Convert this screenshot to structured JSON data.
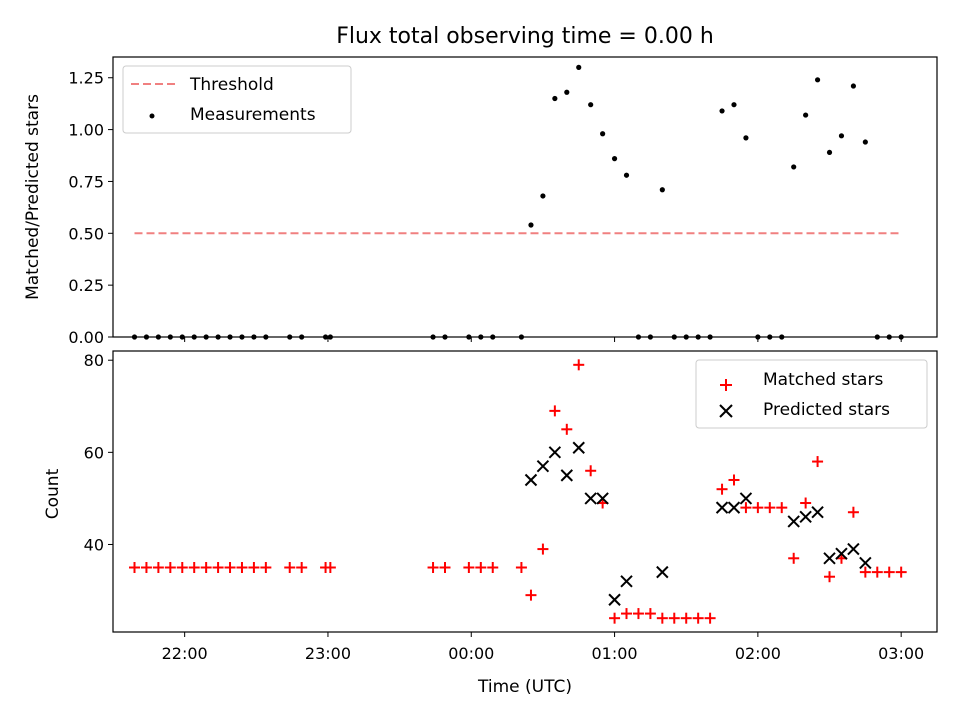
{
  "chart_data": [
    {
      "type": "scatter",
      "title": "Flux total observing time = 0.00 h",
      "xlabel": "",
      "ylabel": "Matched/Predicted stars",
      "ylim": [
        0,
        1.35
      ],
      "yticks": [
        "0.00",
        "0.25",
        "0.50",
        "0.75",
        "1.00",
        "1.25"
      ],
      "ytick_values": [
        0,
        0.25,
        0.5,
        0.75,
        1.0,
        1.25
      ],
      "xlim": [
        "21:30",
        "03:15"
      ],
      "x_axis_type": "time",
      "legend_position": "upper-left",
      "threshold": {
        "name": "Threshold",
        "value": 0.5,
        "x_start": "21:39",
        "x_end": "03:00",
        "color": "#f08080",
        "style": "dashed"
      },
      "series": [
        {
          "name": "Measurements",
          "color": "#000000",
          "marker": "dot",
          "points": [
            [
              "21:39",
              0
            ],
            [
              "21:44",
              0
            ],
            [
              "21:49",
              0
            ],
            [
              "21:54",
              0
            ],
            [
              "21:59",
              0
            ],
            [
              "22:04",
              0
            ],
            [
              "22:09",
              0
            ],
            [
              "22:14",
              0
            ],
            [
              "22:19",
              0
            ],
            [
              "22:24",
              0
            ],
            [
              "22:29",
              0
            ],
            [
              "22:34",
              0
            ],
            [
              "22:44",
              0
            ],
            [
              "22:49",
              0
            ],
            [
              "22:59",
              0
            ],
            [
              "23:01",
              0
            ],
            [
              "23:44",
              0
            ],
            [
              "23:49",
              0
            ],
            [
              "23:59",
              0
            ],
            [
              "00:04",
              0
            ],
            [
              "00:09",
              0
            ],
            [
              "00:21",
              0
            ],
            [
              "00:25",
              0.54
            ],
            [
              "00:30",
              0.68
            ],
            [
              "00:35",
              1.15
            ],
            [
              "00:40",
              1.18
            ],
            [
              "00:45",
              1.3
            ],
            [
              "00:50",
              1.12
            ],
            [
              "00:55",
              0.98
            ],
            [
              "01:00",
              0.86
            ],
            [
              "01:05",
              0.78
            ],
            [
              "01:10",
              0
            ],
            [
              "01:15",
              0
            ],
            [
              "01:20",
              0.71
            ],
            [
              "01:25",
              0
            ],
            [
              "01:30",
              0
            ],
            [
              "01:35",
              0
            ],
            [
              "01:40",
              0
            ],
            [
              "01:45",
              1.09
            ],
            [
              "01:50",
              1.12
            ],
            [
              "01:55",
              0.96
            ],
            [
              "02:00",
              0
            ],
            [
              "02:05",
              0
            ],
            [
              "02:10",
              0
            ],
            [
              "02:15",
              0.82
            ],
            [
              "02:20",
              1.07
            ],
            [
              "02:25",
              1.24
            ],
            [
              "02:30",
              0.89
            ],
            [
              "02:35",
              0.97
            ],
            [
              "02:40",
              1.21
            ],
            [
              "02:45",
              0.94
            ],
            [
              "02:50",
              0
            ],
            [
              "02:55",
              0
            ],
            [
              "03:00",
              0
            ]
          ]
        }
      ]
    },
    {
      "type": "scatter",
      "title": "",
      "xlabel": "Time (UTC)",
      "ylabel": "Count",
      "ylim": [
        21,
        82
      ],
      "yticks": [
        "40",
        "60",
        "80"
      ],
      "ytick_values": [
        40,
        60,
        80
      ],
      "xlim": [
        "21:30",
        "03:15"
      ],
      "x_axis_type": "time",
      "xticks": [
        "22:00",
        "23:00",
        "00:00",
        "01:00",
        "02:00",
        "03:00"
      ],
      "legend_position": "upper-right",
      "series": [
        {
          "name": "Matched stars",
          "color": "#ff0000",
          "marker": "plus",
          "points": [
            [
              "21:39",
              35
            ],
            [
              "21:44",
              35
            ],
            [
              "21:49",
              35
            ],
            [
              "21:54",
              35
            ],
            [
              "21:59",
              35
            ],
            [
              "22:04",
              35
            ],
            [
              "22:09",
              35
            ],
            [
              "22:14",
              35
            ],
            [
              "22:19",
              35
            ],
            [
              "22:24",
              35
            ],
            [
              "22:29",
              35
            ],
            [
              "22:34",
              35
            ],
            [
              "22:44",
              35
            ],
            [
              "22:49",
              35
            ],
            [
              "22:59",
              35
            ],
            [
              "23:01",
              35
            ],
            [
              "23:44",
              35
            ],
            [
              "23:49",
              35
            ],
            [
              "23:59",
              35
            ],
            [
              "00:04",
              35
            ],
            [
              "00:09",
              35
            ],
            [
              "00:21",
              35
            ],
            [
              "00:25",
              29
            ],
            [
              "00:30",
              39
            ],
            [
              "00:35",
              69
            ],
            [
              "00:40",
              65
            ],
            [
              "00:45",
              79
            ],
            [
              "00:50",
              56
            ],
            [
              "00:55",
              49
            ],
            [
              "01:00",
              24
            ],
            [
              "01:05",
              25
            ],
            [
              "01:10",
              25
            ],
            [
              "01:15",
              25
            ],
            [
              "01:20",
              24
            ],
            [
              "01:25",
              24
            ],
            [
              "01:30",
              24
            ],
            [
              "01:35",
              24
            ],
            [
              "01:40",
              24
            ],
            [
              "01:45",
              52
            ],
            [
              "01:50",
              54
            ],
            [
              "01:55",
              48
            ],
            [
              "02:00",
              48
            ],
            [
              "02:05",
              48
            ],
            [
              "02:10",
              48
            ],
            [
              "02:15",
              37
            ],
            [
              "02:20",
              49
            ],
            [
              "02:25",
              58
            ],
            [
              "02:30",
              33
            ],
            [
              "02:35",
              37
            ],
            [
              "02:40",
              47
            ],
            [
              "02:45",
              34
            ],
            [
              "02:50",
              34
            ],
            [
              "02:55",
              34
            ],
            [
              "03:00",
              34
            ]
          ]
        },
        {
          "name": "Predicted stars",
          "color": "#000000",
          "marker": "x",
          "points": [
            [
              "00:25",
              54
            ],
            [
              "00:30",
              57
            ],
            [
              "00:35",
              60
            ],
            [
              "00:40",
              55
            ],
            [
              "00:45",
              61
            ],
            [
              "00:50",
              50
            ],
            [
              "00:55",
              50
            ],
            [
              "01:00",
              28
            ],
            [
              "01:05",
              32
            ],
            [
              "01:20",
              34
            ],
            [
              "01:45",
              48
            ],
            [
              "01:50",
              48
            ],
            [
              "01:55",
              50
            ],
            [
              "02:15",
              45
            ],
            [
              "02:20",
              46
            ],
            [
              "02:25",
              47
            ],
            [
              "02:30",
              37
            ],
            [
              "02:35",
              38
            ],
            [
              "02:40",
              39
            ],
            [
              "02:45",
              36
            ]
          ]
        }
      ]
    }
  ]
}
